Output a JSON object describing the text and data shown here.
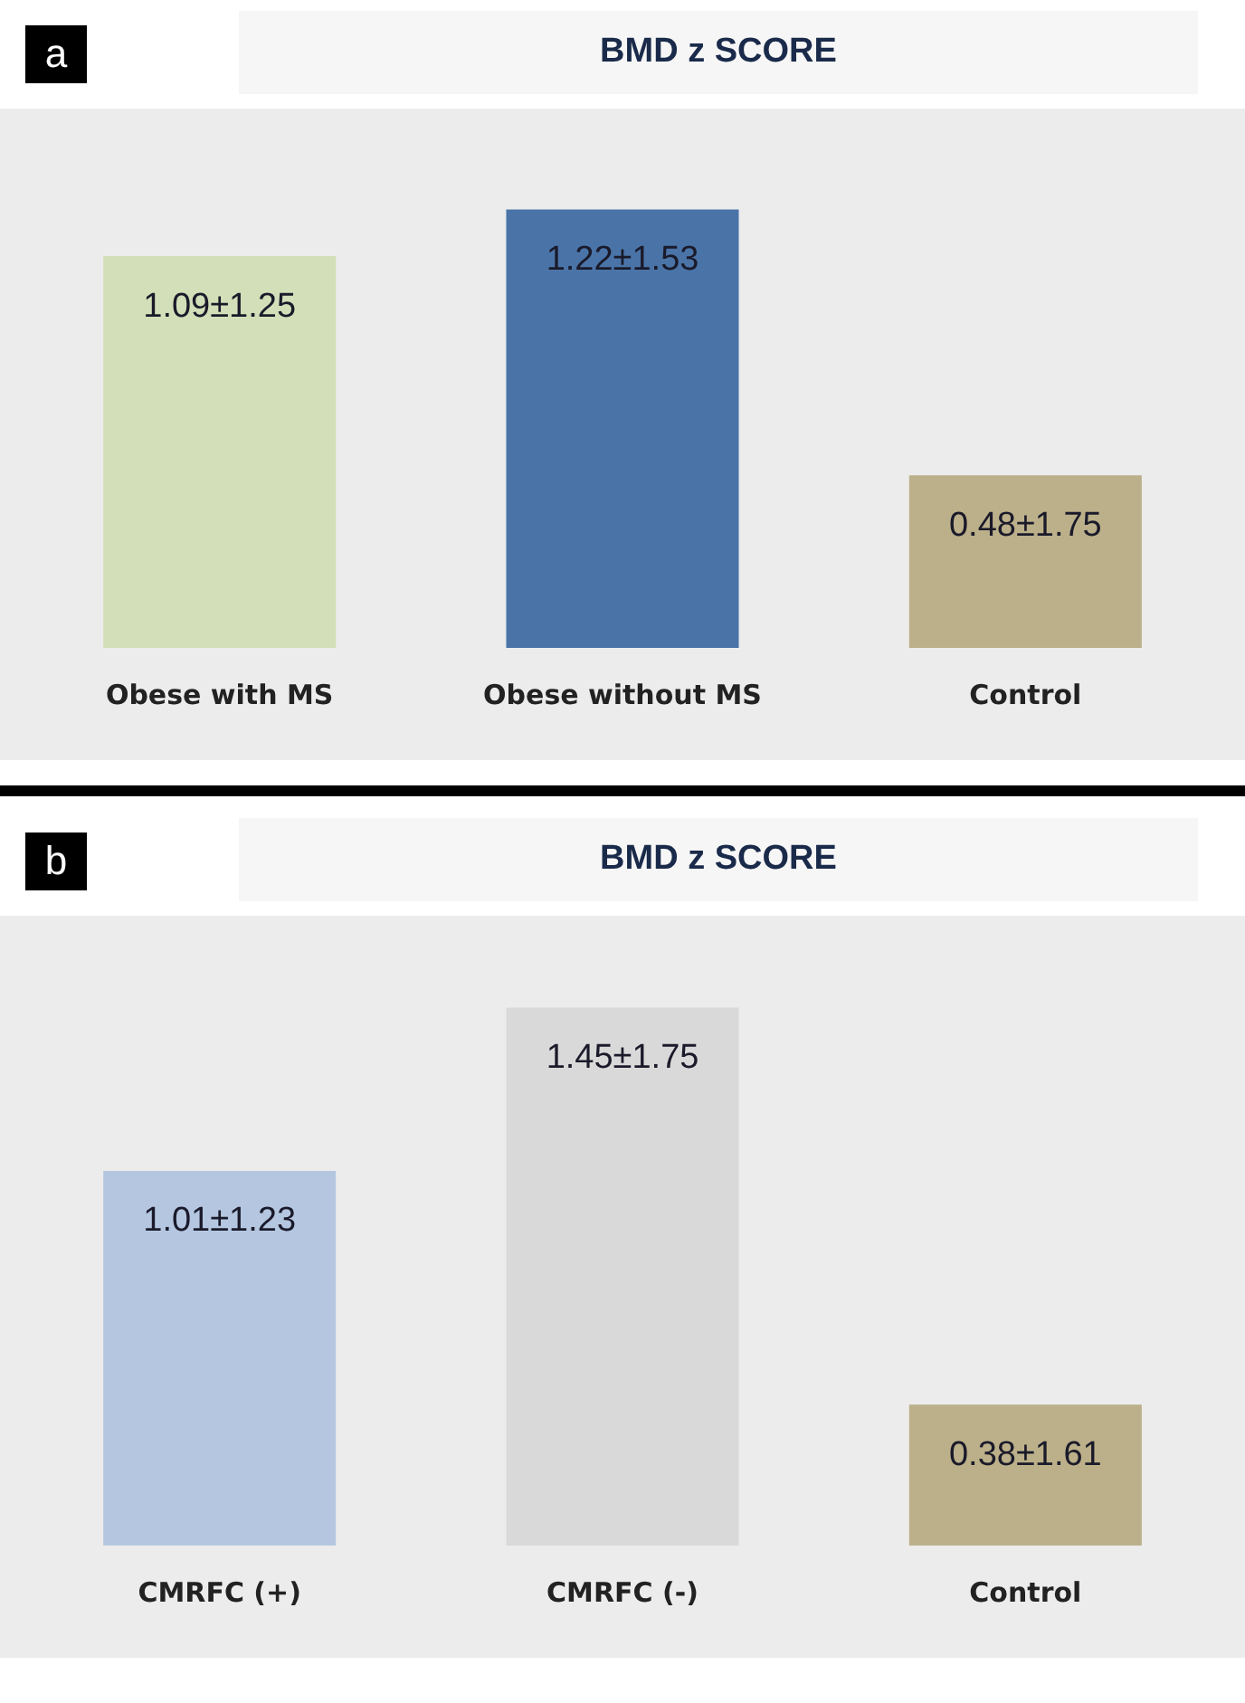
{
  "chart_data": [
    {
      "type": "bar",
      "title": "BMD z SCORE",
      "annotations": [
        "a"
      ],
      "categories": [
        "Obese with MS",
        "Obese without MS",
        "Control"
      ],
      "values": [
        1.09,
        1.22,
        0.48
      ],
      "colors": [
        "#d3dfb8",
        "#4a74a8",
        "#bcb08a"
      ],
      "value_labels": [
        "1.09±1.25",
        "1.22±1.53",
        "0.48±1.75"
      ],
      "legend": false,
      "grid": false,
      "tick_labels": "x"
    },
    {
      "type": "bar",
      "title": "BMD z SCORE",
      "annotations": [
        "b"
      ],
      "categories": [
        "CMRFC (+)",
        "CMRFC (-)",
        "Control"
      ],
      "values": [
        1.01,
        1.45,
        0.38
      ],
      "colors": [
        "#b5c7e0",
        "#d9d9d9",
        "#bcb08a"
      ],
      "value_labels": [
        "1.01±1.23",
        "1.45±1.75",
        "0.38±1.61"
      ],
      "legend": false,
      "grid": false,
      "tick_labels": "x"
    }
  ]
}
